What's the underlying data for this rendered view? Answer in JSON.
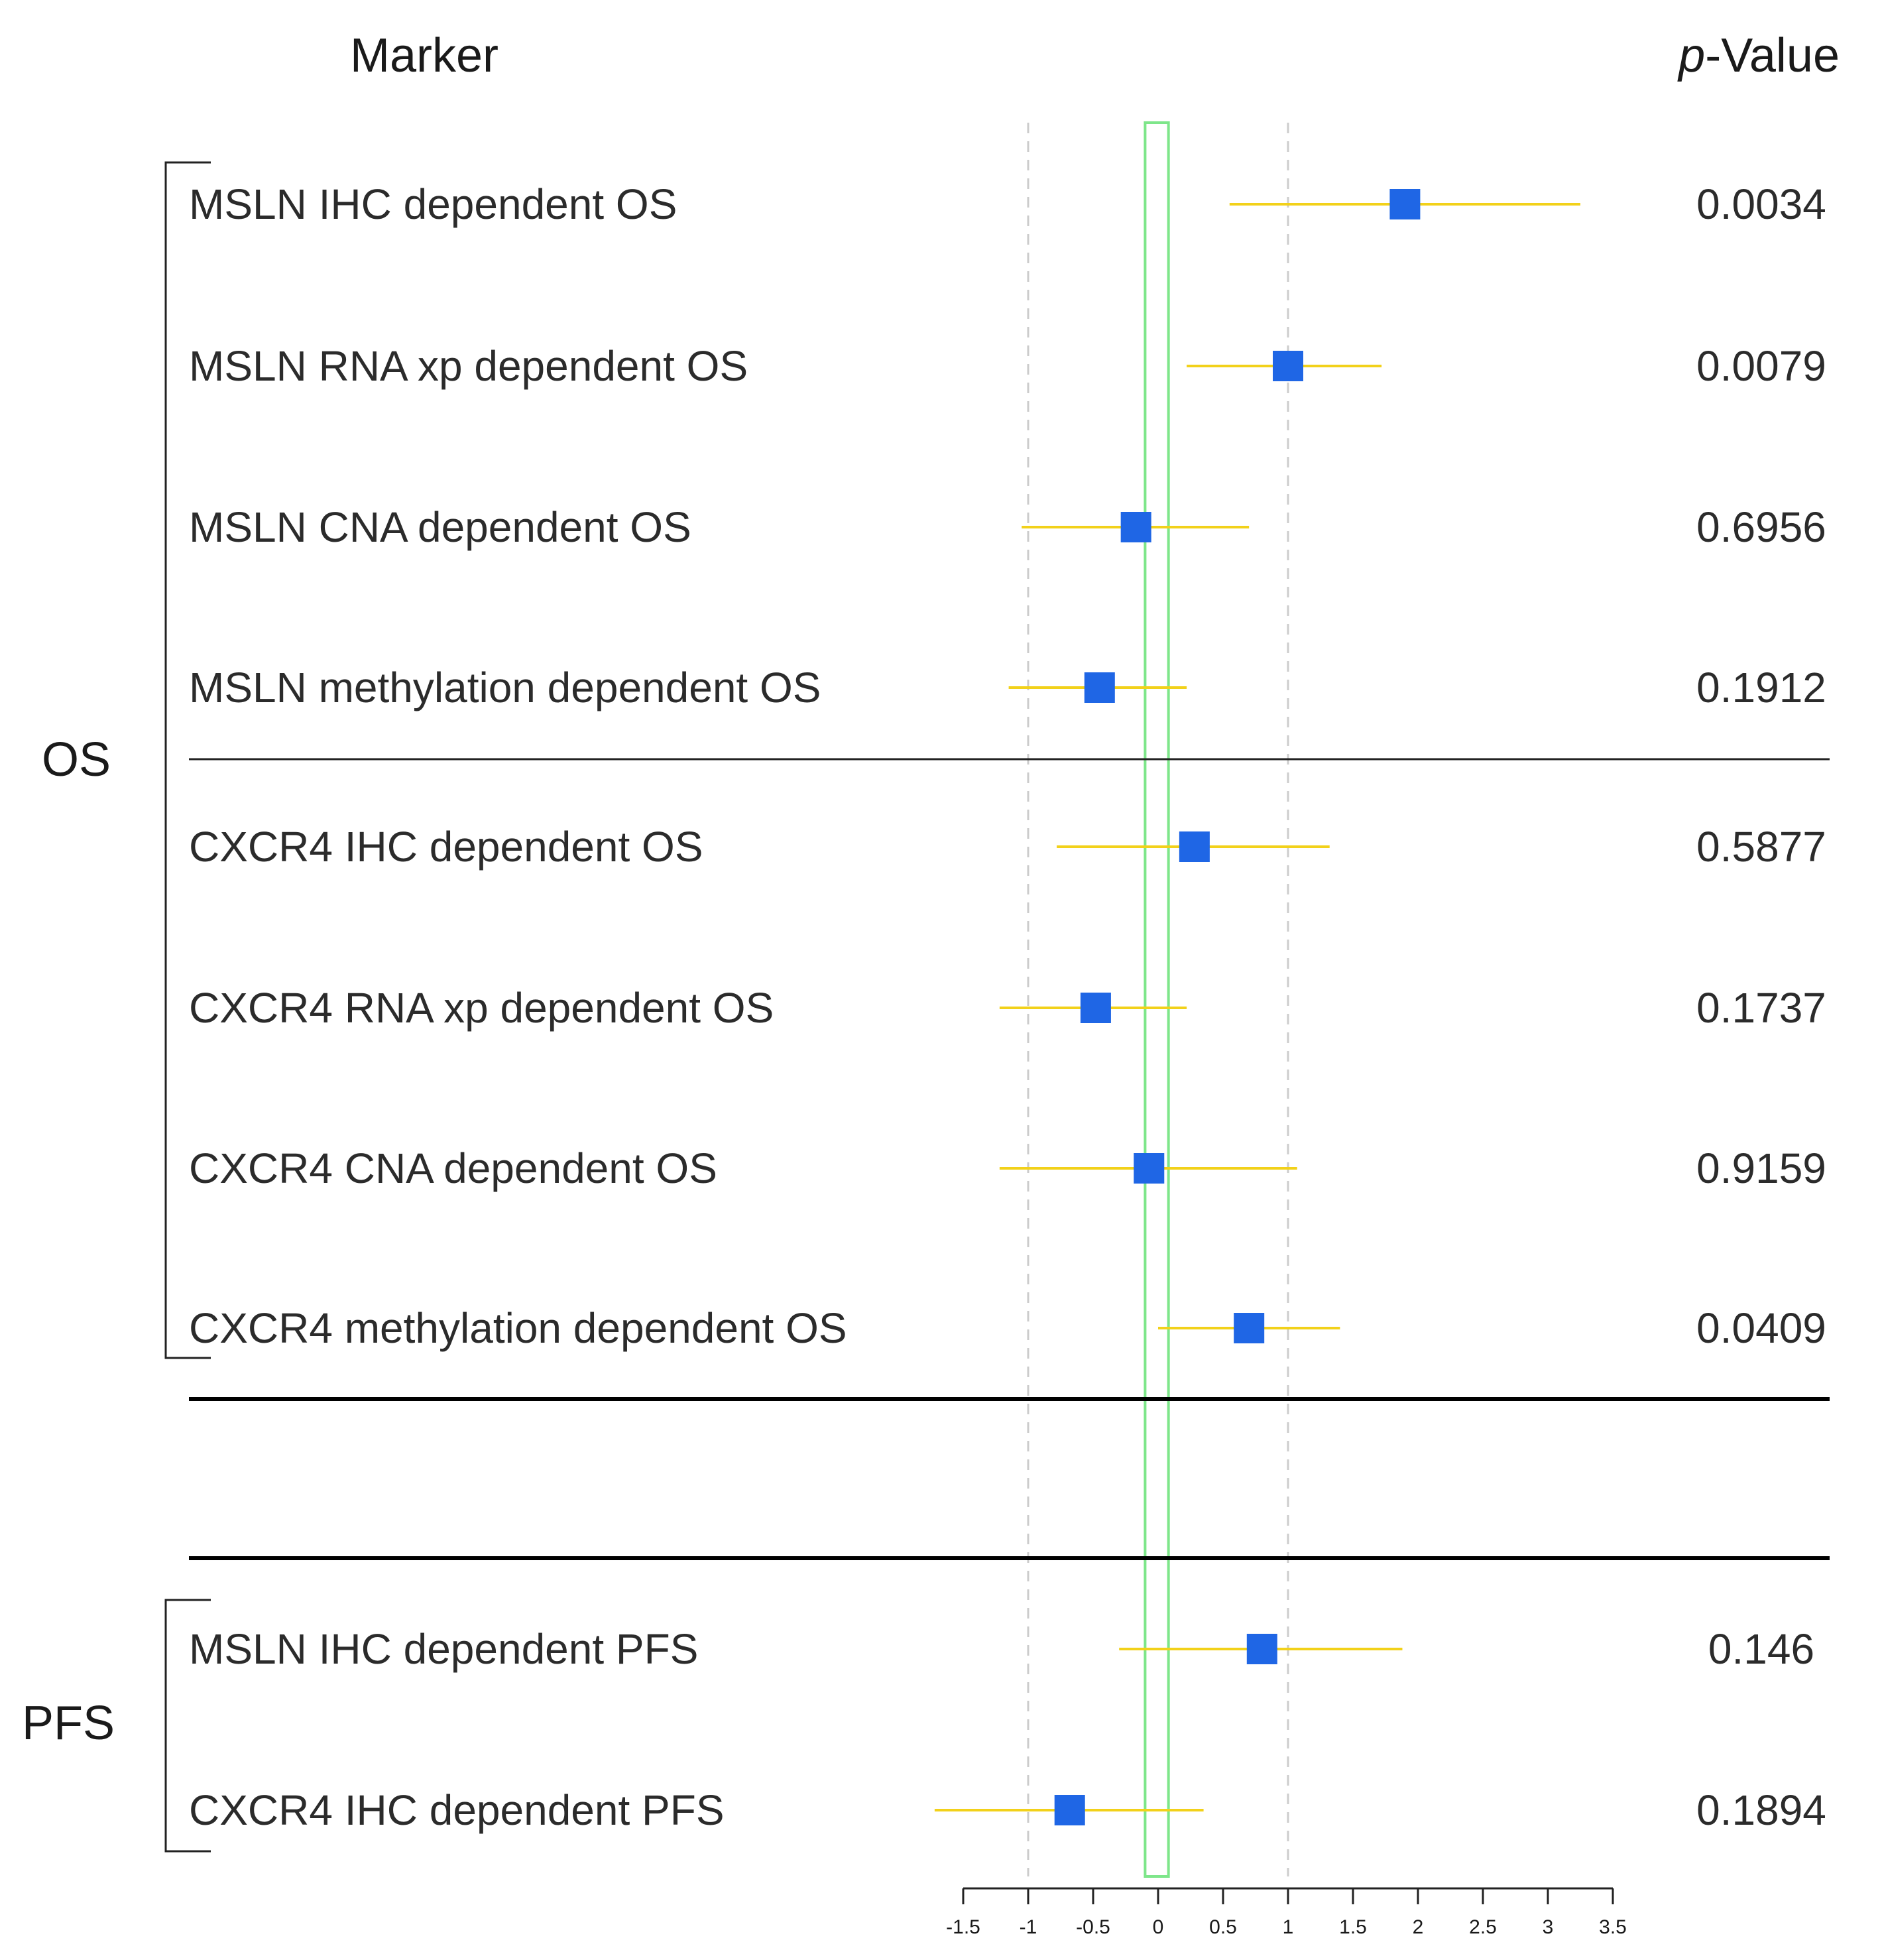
{
  "headers": {
    "marker": "Marker",
    "pvalue_italic": "p",
    "pvalue_rest": "-Value"
  },
  "groups": [
    {
      "label": "OS",
      "rows": [
        0,
        1,
        2,
        3,
        4,
        5,
        6,
        7
      ]
    },
    {
      "label": "PFS",
      "rows": [
        8,
        9
      ]
    }
  ],
  "colors": {
    "point": "#1f66e5",
    "ci": "#f2d11a",
    "null_band": "#7ee68a",
    "grid": "#cccccc",
    "axis": "#222222",
    "divider": "#000000"
  },
  "chart_data": {
    "type": "forest",
    "title": "",
    "xlabel": "",
    "xlim": [
      -1.5,
      3.5
    ],
    "xticks": [
      -1.5,
      -1,
      -0.5,
      0,
      0.5,
      1,
      1.5,
      2,
      2.5,
      3,
      3.5
    ],
    "xtick_labels": [
      "-1.5",
      "-1",
      "-0.5",
      "0",
      "0.5",
      "1",
      "1.5",
      "2",
      "2.5",
      "3",
      "3.5"
    ],
    "reference_lines": [
      -1,
      1
    ],
    "null_band": [
      -0.1,
      0.08
    ],
    "rows": [
      {
        "label": "MSLN IHC dependent OS",
        "estimate": 1.9,
        "ci_low": 0.55,
        "ci_high": 3.25,
        "p": "0.0034"
      },
      {
        "label": "MSLN RNA xp dependent OS",
        "estimate": 1.0,
        "ci_low": 0.22,
        "ci_high": 1.72,
        "p": "0.0079"
      },
      {
        "label": "MSLN CNA dependent OS",
        "estimate": -0.17,
        "ci_low": -1.05,
        "ci_high": 0.7,
        "p": "0.6956"
      },
      {
        "label": "MSLN methylation dependent OS",
        "estimate": -0.45,
        "ci_low": -1.15,
        "ci_high": 0.22,
        "p": "0.1912"
      },
      {
        "label": "CXCR4 IHC dependent OS",
        "estimate": 0.28,
        "ci_low": -0.78,
        "ci_high": 1.32,
        "p": "0.5877"
      },
      {
        "label": "CXCR4 RNA xp dependent OS",
        "estimate": -0.48,
        "ci_low": -1.22,
        "ci_high": 0.22,
        "p": "0.1737"
      },
      {
        "label": "CXCR4 CNA dependent OS",
        "estimate": -0.07,
        "ci_low": -1.22,
        "ci_high": 1.07,
        "p": "0.9159"
      },
      {
        "label": "CXCR4 methylation dependent OS",
        "estimate": 0.7,
        "ci_low": 0.0,
        "ci_high": 1.4,
        "p": "0.0409"
      },
      {
        "label": "MSLN IHC dependent PFS",
        "estimate": 0.8,
        "ci_low": -0.3,
        "ci_high": 1.88,
        "p": "0.146"
      },
      {
        "label": "CXCR4 IHC dependent PFS",
        "estimate": -0.68,
        "ci_low": -1.72,
        "ci_high": 0.35,
        "p": "0.1894"
      }
    ]
  }
}
